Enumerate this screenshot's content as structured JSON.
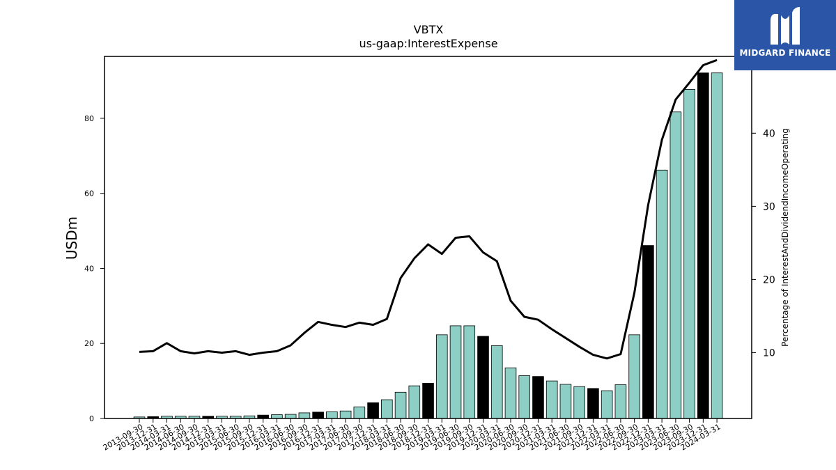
{
  "brand": {
    "name": "MIDGARD FINANCE",
    "logo_icon": "midgard-m-logo-icon",
    "background": "#2b56a8"
  },
  "chart_data": {
    "type": "bar+line",
    "title": "VBTX",
    "subtitle": "us-gaap:InterestExpense",
    "ylabel": "USDm",
    "y2label": "Percentage of InterestAndDividendIncomeOperating",
    "ylim": [
      0,
      96.5
    ],
    "y2lim": [
      1,
      50.5
    ],
    "yticks": [
      0,
      20,
      40,
      60,
      80
    ],
    "y2ticks": [
      10,
      20,
      30,
      40,
      50
    ],
    "grid": false,
    "categories": [
      "2013-09-30",
      "2013-12-31",
      "2014-03-31",
      "2014-06-30",
      "2014-09-30",
      "2014-12-31",
      "2015-03-31",
      "2015-06-30",
      "2015-09-30",
      "2015-12-31",
      "2016-03-31",
      "2016-06-30",
      "2016-09-30",
      "2016-12-31",
      "2017-03-31",
      "2017-06-30",
      "2017-09-30",
      "2017-12-31",
      "2018-03-31",
      "2018-06-30",
      "2018-09-30",
      "2018-12-31",
      "2019-03-31",
      "2019-06-30",
      "2019-09-30",
      "2019-12-31",
      "2020-03-31",
      "2020-06-30",
      "2020-09-30",
      "2020-12-31",
      "2021-03-31",
      "2021-06-30",
      "2021-09-30",
      "2021-12-31",
      "2022-03-31",
      "2022-06-30",
      "2022-09-30",
      "2022-12-31",
      "2023-03-31",
      "2023-06-30",
      "2023-09-30",
      "2023-12-31",
      "2024-03-31"
    ],
    "series": [
      {
        "kind": "bar",
        "values": [
          0.4,
          0.5,
          0.6,
          0.6,
          0.6,
          0.6,
          0.6,
          0.6,
          0.7,
          0.9,
          1.0,
          1.1,
          1.5,
          1.7,
          1.8,
          2.0,
          3.1,
          4.2,
          5.0,
          7.0,
          8.7,
          9.4,
          22.3,
          24.7,
          24.7,
          21.9,
          19.4,
          13.5,
          11.4,
          11.2,
          10.0,
          9.1,
          8.5,
          8.0,
          7.4,
          9.0,
          22.3,
          46.1,
          66.2,
          81.7,
          87.7,
          92.1,
          92.1
        ],
        "highlight": [
          false,
          true,
          false,
          false,
          false,
          true,
          false,
          false,
          false,
          true,
          false,
          false,
          false,
          true,
          false,
          false,
          false,
          true,
          false,
          false,
          false,
          true,
          false,
          false,
          false,
          true,
          false,
          false,
          false,
          true,
          false,
          false,
          false,
          true,
          false,
          false,
          false,
          true,
          false,
          false,
          false,
          true,
          false
        ],
        "color": "#8ecfc5",
        "highlight_color": "#000000"
      },
      {
        "kind": "line",
        "axis": "right",
        "values": [
          10.1,
          10.2,
          11.3,
          10.2,
          9.9,
          10.2,
          10.0,
          10.2,
          9.7,
          10.0,
          10.2,
          11.0,
          12.7,
          14.2,
          13.8,
          13.5,
          14.1,
          13.8,
          14.6,
          20.2,
          22.9,
          24.8,
          23.5,
          25.7,
          25.9,
          23.7,
          22.5,
          17.1,
          14.9,
          14.5,
          13.2,
          12.0,
          10.8,
          9.7,
          9.2,
          9.8,
          18.2,
          30.2,
          39.1,
          44.6,
          46.9,
          49.3,
          50.0
        ],
        "color": "#000000"
      }
    ]
  }
}
